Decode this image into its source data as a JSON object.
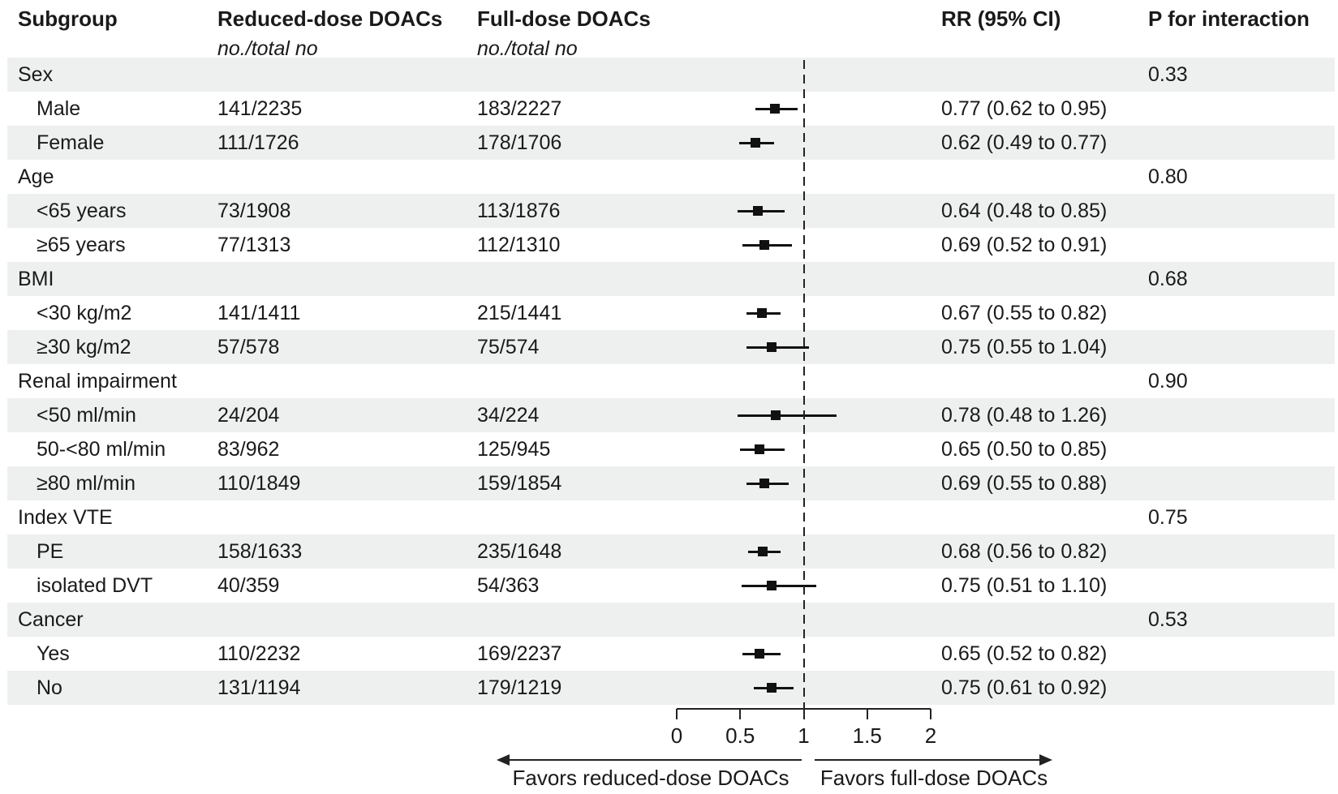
{
  "header": {
    "subgroup": "Subgroup",
    "reduced": "Reduced-dose DOACs",
    "full": "Full-dose DOACs",
    "reduced_sub": "no./total no",
    "full_sub": "no./total no",
    "rr": "RR (95% CI)",
    "p": "P for interaction"
  },
  "rows": [
    {
      "type": "group",
      "label": "Sex",
      "p": "0.33"
    },
    {
      "type": "item",
      "label": "Male",
      "reduced": "141/2235",
      "full": "183/2227",
      "rr": 0.77,
      "lo": 0.62,
      "hi": 0.95,
      "rr_text": "0.77 (0.62 to 0.95)"
    },
    {
      "type": "item",
      "label": "Female",
      "reduced": "111/1726",
      "full": "178/1706",
      "rr": 0.62,
      "lo": 0.49,
      "hi": 0.77,
      "rr_text": "0.62 (0.49 to 0.77)"
    },
    {
      "type": "group",
      "label": "Age",
      "p": "0.80"
    },
    {
      "type": "item",
      "label": "<65 years",
      "reduced": "73/1908",
      "full": "113/1876",
      "rr": 0.64,
      "lo": 0.48,
      "hi": 0.85,
      "rr_text": "0.64 (0.48 to 0.85)"
    },
    {
      "type": "item",
      "label": "≥65 years",
      "reduced": "77/1313",
      "full": "112/1310",
      "rr": 0.69,
      "lo": 0.52,
      "hi": 0.91,
      "rr_text": "0.69 (0.52 to 0.91)"
    },
    {
      "type": "group",
      "label": "BMI",
      "p": "0.68"
    },
    {
      "type": "item",
      "label": "<30 kg/m2",
      "reduced": "141/1411",
      "full": "215/1441",
      "rr": 0.67,
      "lo": 0.55,
      "hi": 0.82,
      "rr_text": "0.67 (0.55 to 0.82)"
    },
    {
      "type": "item",
      "label": "≥30 kg/m2",
      "reduced": "57/578",
      "full": "75/574",
      "rr": 0.75,
      "lo": 0.55,
      "hi": 1.04,
      "rr_text": "0.75 (0.55 to 1.04)"
    },
    {
      "type": "group",
      "label": "Renal impairment",
      "p": "0.90"
    },
    {
      "type": "item",
      "label": "<50 ml/min",
      "reduced": "24/204",
      "full": "34/224",
      "rr": 0.78,
      "lo": 0.48,
      "hi": 1.26,
      "rr_text": "0.78 (0.48 to 1.26)"
    },
    {
      "type": "item",
      "label": "50-<80 ml/min",
      "reduced": "83/962",
      "full": "125/945",
      "rr": 0.65,
      "lo": 0.5,
      "hi": 0.85,
      "rr_text": "0.65 (0.50 to 0.85)"
    },
    {
      "type": "item",
      "label": "≥80 ml/min",
      "reduced": "110/1849",
      "full": "159/1854",
      "rr": 0.69,
      "lo": 0.55,
      "hi": 0.88,
      "rr_text": "0.69 (0.55 to 0.88)"
    },
    {
      "type": "group",
      "label": "Index VTE",
      "p": "0.75"
    },
    {
      "type": "item",
      "label": "PE",
      "reduced": "158/1633",
      "full": "235/1648",
      "rr": 0.68,
      "lo": 0.56,
      "hi": 0.82,
      "rr_text": "0.68 (0.56 to 0.82)"
    },
    {
      "type": "item",
      "label": "isolated DVT",
      "reduced": "40/359",
      "full": "54/363",
      "rr": 0.75,
      "lo": 0.51,
      "hi": 1.1,
      "rr_text": "0.75 (0.51 to 1.10)"
    },
    {
      "type": "group",
      "label": "Cancer",
      "p": "0.53"
    },
    {
      "type": "item",
      "label": "Yes",
      "reduced": "110/2232",
      "full": "169/2237",
      "rr": 0.65,
      "lo": 0.52,
      "hi": 0.82,
      "rr_text": "0.65 (0.52 to 0.82)"
    },
    {
      "type": "item",
      "label": "No",
      "reduced": "131/1194",
      "full": "179/1219",
      "rr": 0.75,
      "lo": 0.61,
      "hi": 0.92,
      "rr_text": "0.75 (0.61 to 0.92)"
    }
  ],
  "axis": {
    "tick_labels": [
      "0",
      "0.5",
      "1",
      "1.5",
      "2"
    ],
    "min": 0,
    "max": 2,
    "reference_line": 1
  },
  "footer": {
    "left": "Favors reduced-dose DOACs",
    "right": "Favors full-dose DOACs"
  },
  "colors": {
    "band": "#eef0f0",
    "ink": "#1a1a1a",
    "marker": "#111111"
  },
  "chart_data": {
    "type": "scatter",
    "variant": "forest-plot",
    "title": "",
    "xlabel_left": "Favors reduced-dose DOACs",
    "xlabel_right": "Favors full-dose DOACs",
    "x_ticks": [
      0,
      0.5,
      1,
      1.5,
      2
    ],
    "xlim": [
      0,
      2
    ],
    "reference_line": 1,
    "columns": [
      "Subgroup",
      "Reduced-dose DOACs no./total no",
      "Full-dose DOACs no./total no",
      "RR (95% CI)",
      "P for interaction"
    ],
    "groups": [
      {
        "name": "Sex",
        "p_interaction": 0.33,
        "points": [
          {
            "subgroup": "Male",
            "reduced": "141/2235",
            "full": "183/2227",
            "rr": 0.77,
            "ci": [
              0.62,
              0.95
            ]
          },
          {
            "subgroup": "Female",
            "reduced": "111/1726",
            "full": "178/1706",
            "rr": 0.62,
            "ci": [
              0.49,
              0.77
            ]
          }
        ]
      },
      {
        "name": "Age",
        "p_interaction": 0.8,
        "points": [
          {
            "subgroup": "<65 years",
            "reduced": "73/1908",
            "full": "113/1876",
            "rr": 0.64,
            "ci": [
              0.48,
              0.85
            ]
          },
          {
            "subgroup": "≥65 years",
            "reduced": "77/1313",
            "full": "112/1310",
            "rr": 0.69,
            "ci": [
              0.52,
              0.91
            ]
          }
        ]
      },
      {
        "name": "BMI",
        "p_interaction": 0.68,
        "points": [
          {
            "subgroup": "<30 kg/m2",
            "reduced": "141/1411",
            "full": "215/1441",
            "rr": 0.67,
            "ci": [
              0.55,
              0.82
            ]
          },
          {
            "subgroup": "≥30 kg/m2",
            "reduced": "57/578",
            "full": "75/574",
            "rr": 0.75,
            "ci": [
              0.55,
              1.04
            ]
          }
        ]
      },
      {
        "name": "Renal impairment",
        "p_interaction": 0.9,
        "points": [
          {
            "subgroup": "<50 ml/min",
            "reduced": "24/204",
            "full": "34/224",
            "rr": 0.78,
            "ci": [
              0.48,
              1.26
            ]
          },
          {
            "subgroup": "50-<80 ml/min",
            "reduced": "83/962",
            "full": "125/945",
            "rr": 0.65,
            "ci": [
              0.5,
              0.85
            ]
          },
          {
            "subgroup": "≥80 ml/min",
            "reduced": "110/1849",
            "full": "159/1854",
            "rr": 0.69,
            "ci": [
              0.55,
              0.88
            ]
          }
        ]
      },
      {
        "name": "Index VTE",
        "p_interaction": 0.75,
        "points": [
          {
            "subgroup": "PE",
            "reduced": "158/1633",
            "full": "235/1648",
            "rr": 0.68,
            "ci": [
              0.56,
              0.82
            ]
          },
          {
            "subgroup": "isolated DVT",
            "reduced": "40/359",
            "full": "54/363",
            "rr": 0.75,
            "ci": [
              0.51,
              1.1
            ]
          }
        ]
      },
      {
        "name": "Cancer",
        "p_interaction": 0.53,
        "points": [
          {
            "subgroup": "Yes",
            "reduced": "110/2232",
            "full": "169/2237",
            "rr": 0.65,
            "ci": [
              0.52,
              0.82
            ]
          },
          {
            "subgroup": "No",
            "reduced": "131/1194",
            "full": "179/1219",
            "rr": 0.75,
            "ci": [
              0.61,
              0.92
            ]
          }
        ]
      }
    ]
  }
}
